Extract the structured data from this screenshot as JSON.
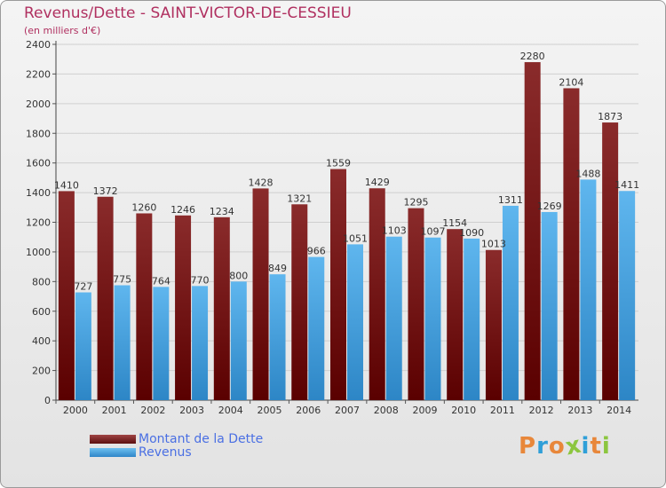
{
  "header": {
    "title": "Revenus/Dette - SAINT-VICTOR-DE-CESSIEU",
    "subtitle": "(en milliers d'€)"
  },
  "legend": {
    "items": [
      {
        "label": "Montant de la Dette",
        "color": "#7a1c1c"
      },
      {
        "label": "Revenus",
        "color": "#4aa3e0"
      }
    ]
  },
  "logo": {
    "text": "Proxiti",
    "letters": [
      {
        "ch": "P",
        "color": "#e8873a"
      },
      {
        "ch": "r",
        "color": "#2f9fd8"
      },
      {
        "ch": "o",
        "color": "#e8873a"
      },
      {
        "ch": "x",
        "color": "#8cc63f"
      },
      {
        "ch": "i",
        "color": "#2f9fd8"
      },
      {
        "ch": "t",
        "color": "#e8873a"
      },
      {
        "ch": "i",
        "color": "#8cc63f"
      }
    ]
  },
  "chart_data": {
    "type": "bar",
    "title": "Revenus/Dette - SAINT-VICTOR-DE-CESSIEU",
    "subtitle": "(en milliers d'€)",
    "categories": [
      "2000",
      "2001",
      "2002",
      "2003",
      "2004",
      "2005",
      "2006",
      "2007",
      "2008",
      "2009",
      "2010",
      "2011",
      "2012",
      "2013",
      "2014"
    ],
    "series": [
      {
        "name": "Montant de la Dette",
        "color": "#7a1c1c",
        "values": [
          1410,
          1372,
          1260,
          1246,
          1234,
          1428,
          1321,
          1559,
          1429,
          1295,
          1154,
          1013,
          2280,
          2104,
          1873
        ],
        "labels": [
          "1410",
          "1372",
          "1260",
          "1246",
          "1234",
          "1428",
          "1321",
          "1559",
          "1429",
          "1295",
          "1154",
          "1013",
          "2280",
          "2104",
          "1873"
        ]
      },
      {
        "name": "Revenus",
        "color": "#4aa3e0",
        "values": [
          727,
          775,
          764,
          770,
          800,
          849,
          966,
          1051,
          1103,
          1097,
          1090,
          1311,
          1269,
          1488,
          1411
        ],
        "labels": [
          "727",
          "775",
          "764",
          "770",
          "800",
          "849",
          "966",
          "1051",
          "1103",
          "1097",
          "1090",
          "1311",
          "1269",
          "1488",
          "1411"
        ]
      }
    ],
    "ylim": [
      0,
      2400
    ],
    "yticks": [
      0,
      200,
      400,
      600,
      800,
      1000,
      1200,
      1400,
      1600,
      1800,
      2000,
      2200,
      2400
    ],
    "grid": true,
    "legend_position": "bottom-left"
  }
}
